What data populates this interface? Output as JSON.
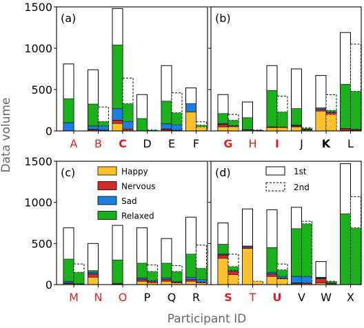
{
  "figure": {
    "ylabel": "Data volume",
    "xlabel": "Participant ID"
  },
  "legend": {
    "categories": [
      {
        "name": "Happy",
        "color": "#FDC02E"
      },
      {
        "name": "Nervous",
        "color": "#D12C2C"
      },
      {
        "name": "Sad",
        "color": "#1E7FE3"
      },
      {
        "name": "Relaxed",
        "color": "#1DB01D"
      }
    ],
    "sessions": [
      {
        "name": "1st",
        "style": "solid"
      },
      {
        "name": "2nd",
        "style": "dashed"
      }
    ]
  },
  "chart_data": [
    {
      "type": "bar",
      "panel": "(a)",
      "ylim": [
        0,
        1500
      ],
      "yticks": [
        0,
        500,
        1000,
        1500
      ],
      "stack_order": [
        "Happy",
        "Nervous",
        "Sad",
        "Relaxed"
      ],
      "participants": [
        {
          "id": "A",
          "highlight": "red",
          "bold": false,
          "first": {
            "total": 810,
            "Happy": 0,
            "Nervous": 0,
            "Sad": 100,
            "Relaxed": 290
          },
          "second": {
            "total": 0,
            "Happy": 0,
            "Nervous": 0,
            "Sad": 0,
            "Relaxed": 0
          }
        },
        {
          "id": "B",
          "highlight": "red",
          "bold": false,
          "first": {
            "total": 740,
            "Happy": 10,
            "Nervous": 10,
            "Sad": 40,
            "Relaxed": 265
          },
          "second": {
            "total": 290,
            "Happy": 5,
            "Nervous": 5,
            "Sad": 50,
            "Relaxed": 55
          }
        },
        {
          "id": "C",
          "highlight": "red",
          "bold": true,
          "first": {
            "total": 1480,
            "Happy": 90,
            "Nervous": 40,
            "Sad": 140,
            "Relaxed": 770
          },
          "second": {
            "total": 640,
            "Happy": 10,
            "Nervous": 15,
            "Sad": 90,
            "Relaxed": 215
          }
        },
        {
          "id": "D",
          "highlight": "none",
          "bold": false,
          "first": {
            "total": 440,
            "Happy": 0,
            "Nervous": 0,
            "Sad": 0,
            "Relaxed": 150
          },
          "second": {
            "total": 10,
            "Happy": 0,
            "Nervous": 0,
            "Sad": 0,
            "Relaxed": 10
          }
        },
        {
          "id": "E",
          "highlight": "none",
          "bold": false,
          "first": {
            "total": 790,
            "Happy": 10,
            "Nervous": 15,
            "Sad": 60,
            "Relaxed": 275
          },
          "second": {
            "total": 460,
            "Happy": 5,
            "Nervous": 5,
            "Sad": 65,
            "Relaxed": 145
          }
        },
        {
          "id": "F",
          "highlight": "none",
          "bold": false,
          "first": {
            "total": 520,
            "Happy": 230,
            "Nervous": 0,
            "Sad": 100,
            "Relaxed": 0
          },
          "second": {
            "total": 110,
            "Happy": 50,
            "Nervous": 0,
            "Sad": 0,
            "Relaxed": 20
          }
        }
      ]
    },
    {
      "type": "bar",
      "panel": "(b)",
      "ylim": [
        0,
        1500
      ],
      "yticks": [
        0,
        500,
        1000,
        1500
      ],
      "stack_order": [
        "Happy",
        "Nervous",
        "Sad",
        "Relaxed"
      ],
      "participants": [
        {
          "id": "G",
          "highlight": "red",
          "bold": true,
          "first": {
            "total": 440,
            "Happy": 50,
            "Nervous": 30,
            "Sad": 10,
            "Relaxed": 120
          },
          "second": {
            "total": 200,
            "Happy": 50,
            "Nervous": 10,
            "Sad": 5,
            "Relaxed": 65
          }
        },
        {
          "id": "H",
          "highlight": "red",
          "bold": false,
          "first": {
            "total": 350,
            "Happy": 10,
            "Nervous": 5,
            "Sad": 0,
            "Relaxed": 145
          },
          "second": {
            "total": 10,
            "Happy": 5,
            "Nervous": 0,
            "Sad": 0,
            "Relaxed": 5
          }
        },
        {
          "id": "I",
          "highlight": "red",
          "bold": true,
          "first": {
            "total": 790,
            "Happy": 40,
            "Nervous": 10,
            "Sad": 0,
            "Relaxed": 440
          },
          "second": {
            "total": 420,
            "Happy": 40,
            "Nervous": 10,
            "Sad": 0,
            "Relaxed": 180
          }
        },
        {
          "id": "J",
          "highlight": "none",
          "bold": false,
          "first": {
            "total": 750,
            "Happy": 50,
            "Nervous": 10,
            "Sad": 10,
            "Relaxed": 200
          },
          "second": {
            "total": 40,
            "Happy": 10,
            "Nervous": 5,
            "Sad": 5,
            "Relaxed": 10
          }
        },
        {
          "id": "K",
          "highlight": "none",
          "bold": true,
          "first": {
            "total": 670,
            "Happy": 240,
            "Nervous": 20,
            "Sad": 20,
            "Relaxed": 0
          },
          "second": {
            "total": 440,
            "Happy": 200,
            "Nervous": 20,
            "Sad": 10,
            "Relaxed": 20
          }
        },
        {
          "id": "L",
          "highlight": "none",
          "bold": false,
          "first": {
            "total": 1190,
            "Happy": 10,
            "Nervous": 20,
            "Sad": 0,
            "Relaxed": 535
          },
          "second": {
            "total": 1050,
            "Happy": 5,
            "Nervous": 10,
            "Sad": 5,
            "Relaxed": 460
          }
        }
      ]
    },
    {
      "type": "bar",
      "panel": "(c)",
      "ylim": [
        0,
        1500
      ],
      "yticks": [
        0,
        500,
        1000,
        1500
      ],
      "stack_order": [
        "Happy",
        "Nervous",
        "Sad",
        "Relaxed"
      ],
      "participants": [
        {
          "id": "M",
          "highlight": "red",
          "bold": false,
          "first": {
            "total": 690,
            "Happy": 10,
            "Nervous": 10,
            "Sad": 20,
            "Relaxed": 270
          },
          "second": {
            "total": 250,
            "Happy": 5,
            "Nervous": 5,
            "Sad": 0,
            "Relaxed": 140
          }
        },
        {
          "id": "N",
          "highlight": "red",
          "bold": false,
          "first": {
            "total": 500,
            "Happy": 90,
            "Nervous": 40,
            "Sad": 20,
            "Relaxed": 20
          },
          "second": {
            "total": 0,
            "Happy": 0,
            "Nervous": 0,
            "Sad": 0,
            "Relaxed": 0
          }
        },
        {
          "id": "O",
          "highlight": "red",
          "bold": false,
          "first": {
            "total": 720,
            "Happy": 5,
            "Nervous": 10,
            "Sad": 0,
            "Relaxed": 285
          },
          "second": {
            "total": 0,
            "Happy": 0,
            "Nervous": 0,
            "Sad": 0,
            "Relaxed": 0
          }
        },
        {
          "id": "P",
          "highlight": "none",
          "bold": false,
          "first": {
            "total": 690,
            "Happy": 40,
            "Nervous": 20,
            "Sad": 20,
            "Relaxed": 180
          },
          "second": {
            "total": 240,
            "Happy": 20,
            "Nervous": 20,
            "Sad": 10,
            "Relaxed": 110
          }
        },
        {
          "id": "Q",
          "highlight": "none",
          "bold": false,
          "first": {
            "total": 560,
            "Happy": 40,
            "Nervous": 20,
            "Sad": 20,
            "Relaxed": 180
          },
          "second": {
            "total": 230,
            "Happy": 20,
            "Nervous": 10,
            "Sad": 10,
            "Relaxed": 120
          }
        },
        {
          "id": "R",
          "highlight": "none",
          "bold": false,
          "first": {
            "total": 820,
            "Happy": 40,
            "Nervous": 20,
            "Sad": 30,
            "Relaxed": 280
          },
          "second": {
            "total": 480,
            "Happy": 20,
            "Nervous": 10,
            "Sad": 30,
            "Relaxed": 140
          }
        }
      ]
    },
    {
      "type": "bar",
      "panel": "(d)",
      "ylim": [
        0,
        1500
      ],
      "yticks": [
        0,
        500,
        1000,
        1500
      ],
      "stack_order": [
        "Happy",
        "Nervous",
        "Sad",
        "Relaxed"
      ],
      "participants": [
        {
          "id": "S",
          "highlight": "red",
          "bold": true,
          "first": {
            "total": 750,
            "Happy": 320,
            "Nervous": 40,
            "Sad": 10,
            "Relaxed": 120
          },
          "second": {
            "total": 370,
            "Happy": 120,
            "Nervous": 40,
            "Sad": 10,
            "Relaxed": 50
          }
        },
        {
          "id": "T",
          "highlight": "red",
          "bold": false,
          "first": {
            "total": 920,
            "Happy": 440,
            "Nervous": 20,
            "Sad": 10,
            "Relaxed": 0
          },
          "second": {
            "total": 40,
            "Happy": 40,
            "Nervous": 0,
            "Sad": 0,
            "Relaxed": 0
          }
        },
        {
          "id": "U",
          "highlight": "red",
          "bold": true,
          "first": {
            "total": 910,
            "Happy": 100,
            "Nervous": 30,
            "Sad": 20,
            "Relaxed": 300
          },
          "second": {
            "total": 250,
            "Happy": 70,
            "Nervous": 10,
            "Sad": 20,
            "Relaxed": 80
          }
        },
        {
          "id": "V",
          "highlight": "none",
          "bold": false,
          "first": {
            "total": 940,
            "Happy": 10,
            "Nervous": 10,
            "Sad": 80,
            "Relaxed": 580
          },
          "second": {
            "total": 770,
            "Happy": 10,
            "Nervous": 10,
            "Sad": 80,
            "Relaxed": 640
          }
        },
        {
          "id": "W",
          "highlight": "none",
          "bold": false,
          "first": {
            "total": 280,
            "Happy": 20,
            "Nervous": 50,
            "Sad": 10,
            "Relaxed": 10
          },
          "second": {
            "total": 40,
            "Happy": 5,
            "Nervous": 10,
            "Sad": 5,
            "Relaxed": 20
          }
        },
        {
          "id": "X",
          "highlight": "none",
          "bold": false,
          "first": {
            "total": 1470,
            "Happy": 0,
            "Nervous": 0,
            "Sad": 0,
            "Relaxed": 860
          },
          "second": {
            "total": 1070,
            "Happy": 0,
            "Nervous": 0,
            "Sad": 0,
            "Relaxed": 690
          }
        }
      ]
    }
  ]
}
